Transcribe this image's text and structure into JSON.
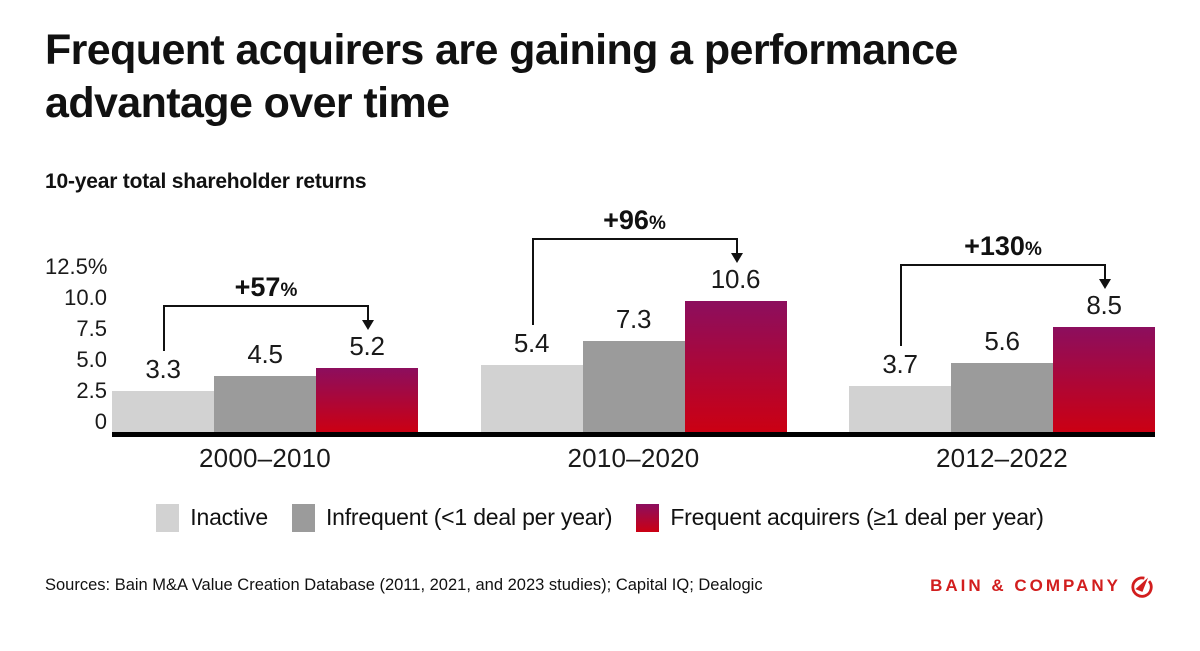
{
  "header": {
    "title": "Frequent acquirers are gaining a performance advantage over time",
    "subtitle": "10-year total shareholder returns"
  },
  "chart_data": {
    "type": "bar",
    "title": "10-year total shareholder returns",
    "categories": [
      "2000–2010",
      "2010–2020",
      "2012–2022"
    ],
    "series": [
      {
        "name": "Inactive",
        "color": "#d2d2d2",
        "values": [
          3.3,
          5.4,
          3.7
        ]
      },
      {
        "name": "Infrequent (<1 deal per year)",
        "color": "#9b9b9b",
        "values": [
          4.5,
          7.3,
          5.6
        ]
      },
      {
        "name": "Frequent acquirers (≥1 deal per year)",
        "color_top": "#8c0e5e",
        "color_bottom": "#cb0013",
        "values": [
          5.2,
          10.6,
          8.5
        ]
      }
    ],
    "annotations": [
      {
        "value": "+57",
        "unit": "%"
      },
      {
        "value": "+96",
        "unit": "%"
      },
      {
        "value": "+130",
        "unit": "%"
      }
    ],
    "y_axis": {
      "tick_labels": [
        "12.5%",
        "10.0",
        "7.5",
        "5.0",
        "2.5",
        "0"
      ],
      "tick_values": [
        12.5,
        10,
        7.5,
        5,
        2.5,
        0
      ],
      "max": 12.5
    },
    "grid": false,
    "legend_position": "bottom"
  },
  "footer": {
    "sources": "Sources: Bain M&A Value Creation Database (2011, 2021, and 2023 studies); Capital IQ; Dealogic",
    "brand": "BAIN & COMPANY",
    "brand_color": "#d21e1e"
  }
}
